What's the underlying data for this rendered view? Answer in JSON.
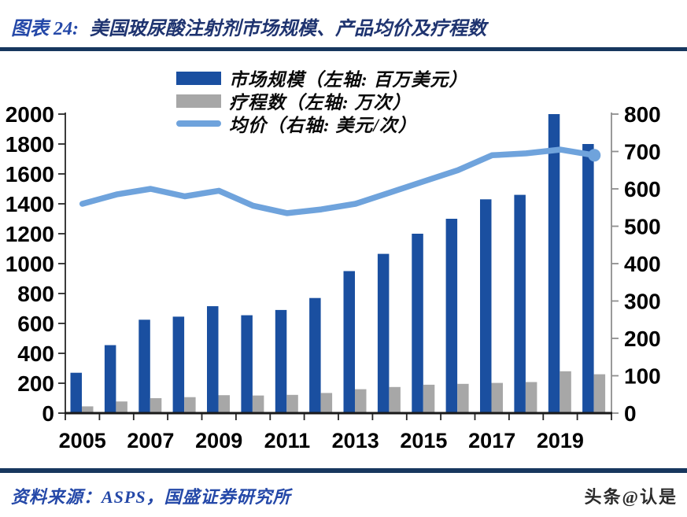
{
  "header": {
    "figure_label": "图表 24:",
    "title": "美国玻尿酸注射剂市场规模、产品均价及疗程数"
  },
  "legend": [
    {
      "label": "市场规模（左轴: 百万美元）",
      "swatch": "bar",
      "color": "#1A4FA0"
    },
    {
      "label": "疗程数（左轴: 万次）",
      "swatch": "bar",
      "color": "#A7A7A7"
    },
    {
      "label": "均价（右轴: 美元/次）",
      "swatch": "line",
      "color": "#6FA3DC"
    }
  ],
  "chart_data": {
    "type": "bar",
    "subtype": "combo-bar-line-dual-axis",
    "title": "美国玻尿酸注射剂市场规模、产品均价及疗程数",
    "categories": [
      "2005",
      "2006",
      "2007",
      "2008",
      "2009",
      "2010",
      "2011",
      "2012",
      "2013",
      "2014",
      "2015",
      "2016",
      "2017",
      "2018",
      "2019",
      "2020"
    ],
    "x_tick_labels": [
      "2005",
      "2007",
      "2009",
      "2011",
      "2013",
      "2015",
      "2017",
      "2019"
    ],
    "series": [
      {
        "name": "市场规模（左轴: 百万美元）",
        "type": "bar",
        "axis": "left",
        "color": "#1A4FA0",
        "values": [
          270,
          455,
          625,
          645,
          715,
          655,
          690,
          770,
          950,
          1065,
          1200,
          1300,
          1430,
          1460,
          2000,
          1800
        ]
      },
      {
        "name": "疗程数（左轴: 万次）",
        "type": "bar",
        "axis": "left",
        "color": "#A7A7A7",
        "values": [
          45,
          78,
          100,
          107,
          120,
          118,
          122,
          135,
          160,
          175,
          190,
          196,
          202,
          208,
          280,
          260
        ]
      },
      {
        "name": "均价（右轴: 美元/次）",
        "type": "line",
        "axis": "right",
        "color": "#6FA3DC",
        "values": [
          560,
          585,
          600,
          580,
          595,
          555,
          535,
          545,
          560,
          590,
          620,
          650,
          690,
          695,
          705,
          690
        ]
      }
    ],
    "left_axis": {
      "min": 0,
      "max": 2000,
      "step": 200
    },
    "right_axis": {
      "min": 0,
      "max": 800,
      "step": 100
    },
    "grid": false,
    "legend_position": "top-left-inside"
  },
  "footer": {
    "source": "资料来源：ASPS，国盛证券研究所",
    "watermark": "头条@认是"
  },
  "theme": {
    "title_blue": "#2448A8",
    "title_dark": "#1F3470",
    "rule_navy": "#17375E",
    "source_blue": "#2448A8",
    "watermark": "#2b2b2b",
    "axis_text": "#000000",
    "left_axis_line": "#262626",
    "right_axis_line": "#8f8f8f",
    "bottom_axis_line": "#1a1a1a"
  }
}
